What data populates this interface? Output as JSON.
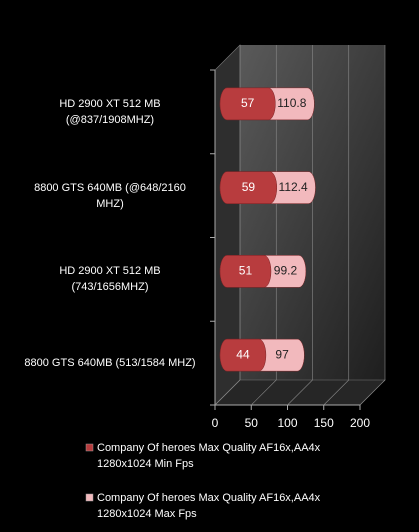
{
  "chart_data": {
    "type": "bar",
    "orientation": "horizontal",
    "categories": [
      "HD 2900 XT 512 MB (@837/1908MHZ)",
      "8800 GTS 640MB (@648/2160 MHZ)",
      "HD 2900 XT 512 MB (743/1656MHZ)",
      "8800 GTS 640MB (513/1584 MHZ)"
    ],
    "series": [
      {
        "name": "Company Of heroes Max Quality AF16x,AA4x 1280x1024 Min Fps",
        "color": "#b83c3e",
        "values": [
          57,
          59,
          51,
          44
        ]
      },
      {
        "name": "Company Of heroes Max Quality AF16x,AA4x 1280x1024 Max Fps",
        "color": "#f2b9bd",
        "values": [
          110.8,
          112.4,
          99.2,
          97
        ]
      }
    ],
    "xlim": [
      0,
      200
    ],
    "xticks": [
      0,
      50,
      100,
      150,
      200
    ],
    "grid": true
  }
}
